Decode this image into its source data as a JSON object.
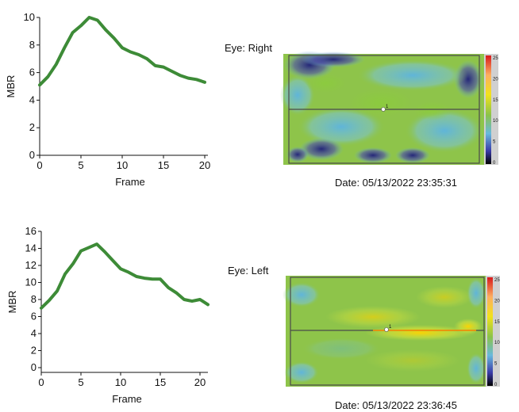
{
  "colors": {
    "line": "#3d8b37",
    "axis": "#111111",
    "map_base": "#8bc34a",
    "map_cool": "#68b9dd",
    "map_dark": "#2a2a8a",
    "map_warm": "#f2e21b",
    "map_hot": "#ff7a00",
    "colorbar_gray": "#d0d0d0"
  },
  "chart_data": [
    {
      "type": "line",
      "title": "",
      "xlabel": "Frame",
      "ylabel": "MBR",
      "xlim": [
        0,
        20
      ],
      "ylim": [
        0,
        10
      ],
      "xticks": [
        "0",
        "5",
        "10",
        "15",
        "20"
      ],
      "yticks": [
        "0",
        "2",
        "4",
        "6",
        "8",
        "10"
      ],
      "grid": false,
      "series": [
        {
          "x": [
            0,
            1,
            2,
            3,
            4,
            5,
            6,
            7,
            8,
            9,
            10,
            11,
            12,
            13,
            14,
            15,
            16,
            17,
            18,
            19,
            20
          ],
          "values": [
            5.1,
            5.7,
            6.6,
            7.8,
            8.9,
            9.4,
            10.0,
            9.8,
            9.1,
            8.5,
            7.8,
            7.5,
            7.3,
            7.0,
            6.5,
            6.4,
            6.1,
            5.8,
            5.6,
            5.5,
            5.3
          ]
        }
      ]
    },
    {
      "type": "line",
      "title": "",
      "xlabel": "Frame",
      "ylabel": "MBR",
      "xlim": [
        0,
        21
      ],
      "ylim": [
        0,
        16
      ],
      "xticks": [
        "0",
        "5",
        "10",
        "15",
        "20"
      ],
      "yticks": [
        "0",
        "2",
        "4",
        "6",
        "8",
        "10",
        "12",
        "14",
        "16"
      ],
      "grid": false,
      "series": [
        {
          "x": [
            0,
            1,
            2,
            3,
            4,
            5,
            6,
            7,
            8,
            9,
            10,
            11,
            12,
            13,
            14,
            15,
            16,
            17,
            18,
            19,
            20,
            21
          ],
          "values": [
            7.0,
            7.9,
            9.0,
            11.0,
            12.2,
            13.7,
            14.1,
            14.5,
            13.6,
            12.6,
            11.6,
            11.2,
            10.7,
            10.5,
            10.4,
            10.4,
            9.4,
            8.8,
            8.0,
            7.8,
            8.0,
            7.4
          ]
        }
      ]
    },
    {
      "type": "heatmap",
      "label": "Eye: Right",
      "date": "Date: 05/13/2022 23:35:31",
      "colorbar_ticks": [
        "25",
        "20",
        "15",
        "10",
        "5",
        "0"
      ],
      "marker_label": "1"
    },
    {
      "type": "heatmap",
      "label": "Eye: Left",
      "date": "Date: 05/13/2022 23:36:45",
      "colorbar_ticks": [
        "25",
        "20",
        "15",
        "10",
        "5",
        "0"
      ],
      "marker_label": "1"
    }
  ]
}
